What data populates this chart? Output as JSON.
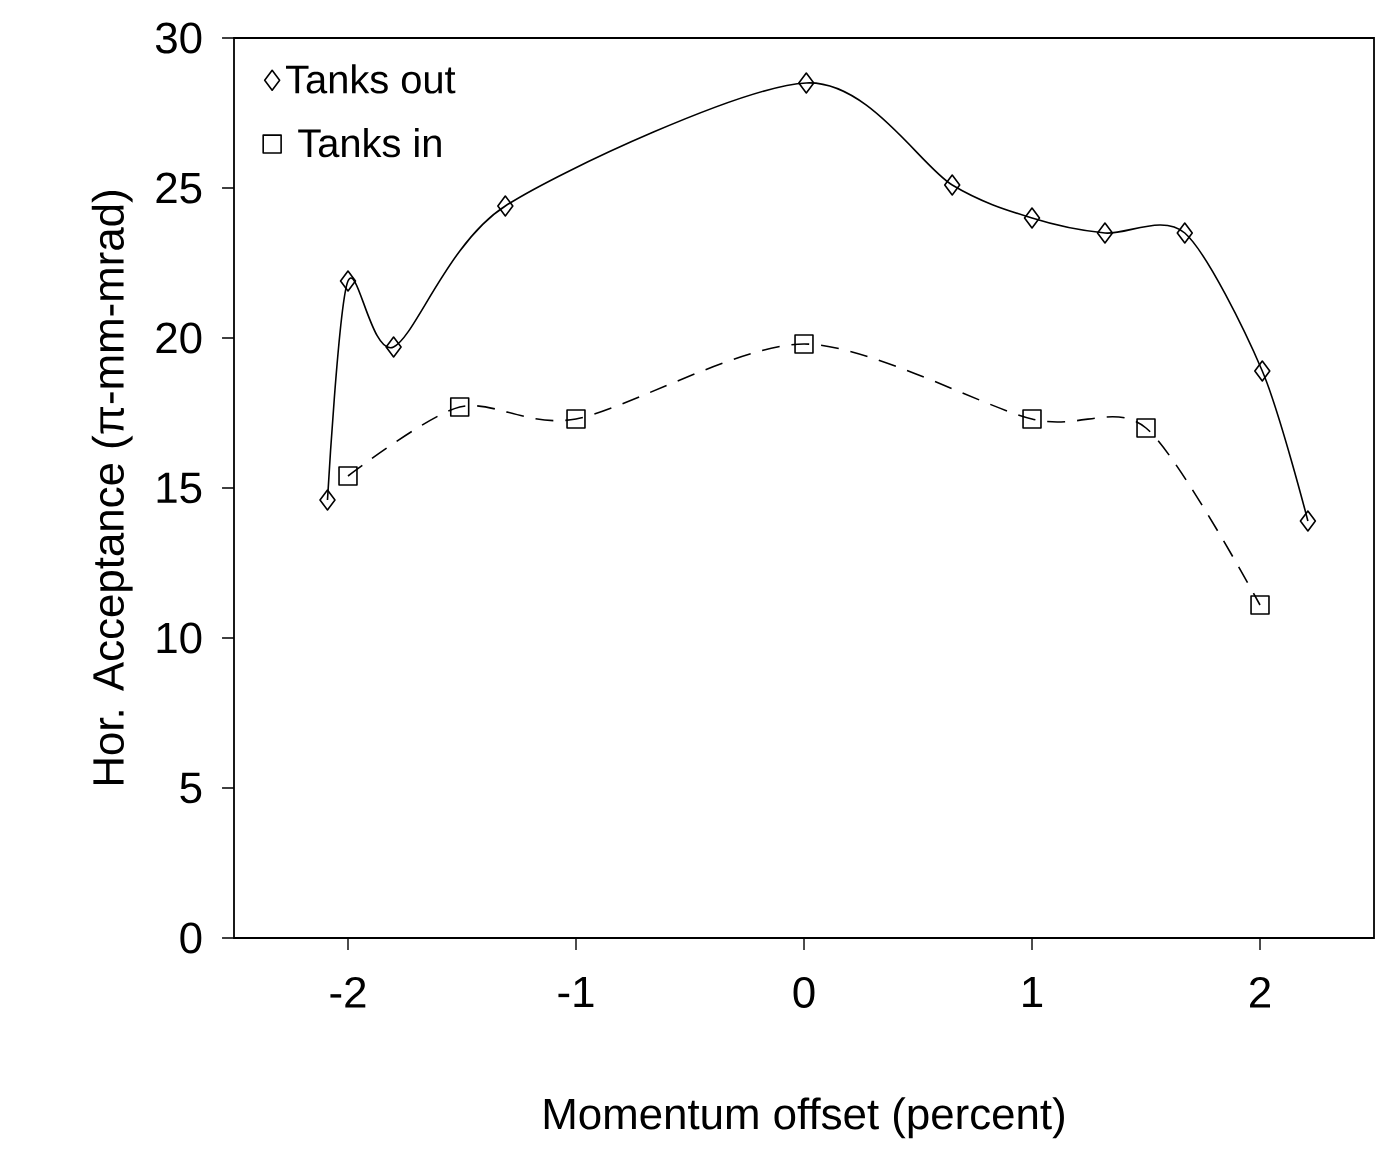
{
  "chart_data": {
    "type": "line",
    "xlabel": "Momentum offset (percent)",
    "ylabel": "Hor. Acceptance (π-mm-mrad)",
    "xlim": [
      -2.5,
      2.5
    ],
    "ylim": [
      0,
      30
    ],
    "xticks": [
      -2,
      -1,
      0,
      1,
      2
    ],
    "yticks": [
      0,
      5,
      10,
      15,
      20,
      25,
      30
    ],
    "legend": "top left",
    "grid": false,
    "series": [
      {
        "name": "Tanks out",
        "color": "#000000",
        "marker": "diamond",
        "line_style": "solid",
        "x": [
          -2.09,
          -2.0,
          -1.8,
          -1.31,
          0.01,
          0.65,
          1.0,
          1.32,
          1.67,
          2.01,
          2.21
        ],
        "values": [
          14.6,
          21.9,
          19.7,
          24.4,
          28.5,
          25.1,
          24.0,
          23.5,
          23.5,
          18.9,
          13.9
        ]
      },
      {
        "name": "Tanks in",
        "color": "#000000",
        "marker": "square",
        "line_style": "dashed",
        "x": [
          -2.0,
          -1.51,
          -1.0,
          0.0,
          1.0,
          1.5,
          2.0
        ],
        "values": [
          15.4,
          17.7,
          17.3,
          19.8,
          17.3,
          17.0,
          11.1
        ]
      }
    ]
  }
}
